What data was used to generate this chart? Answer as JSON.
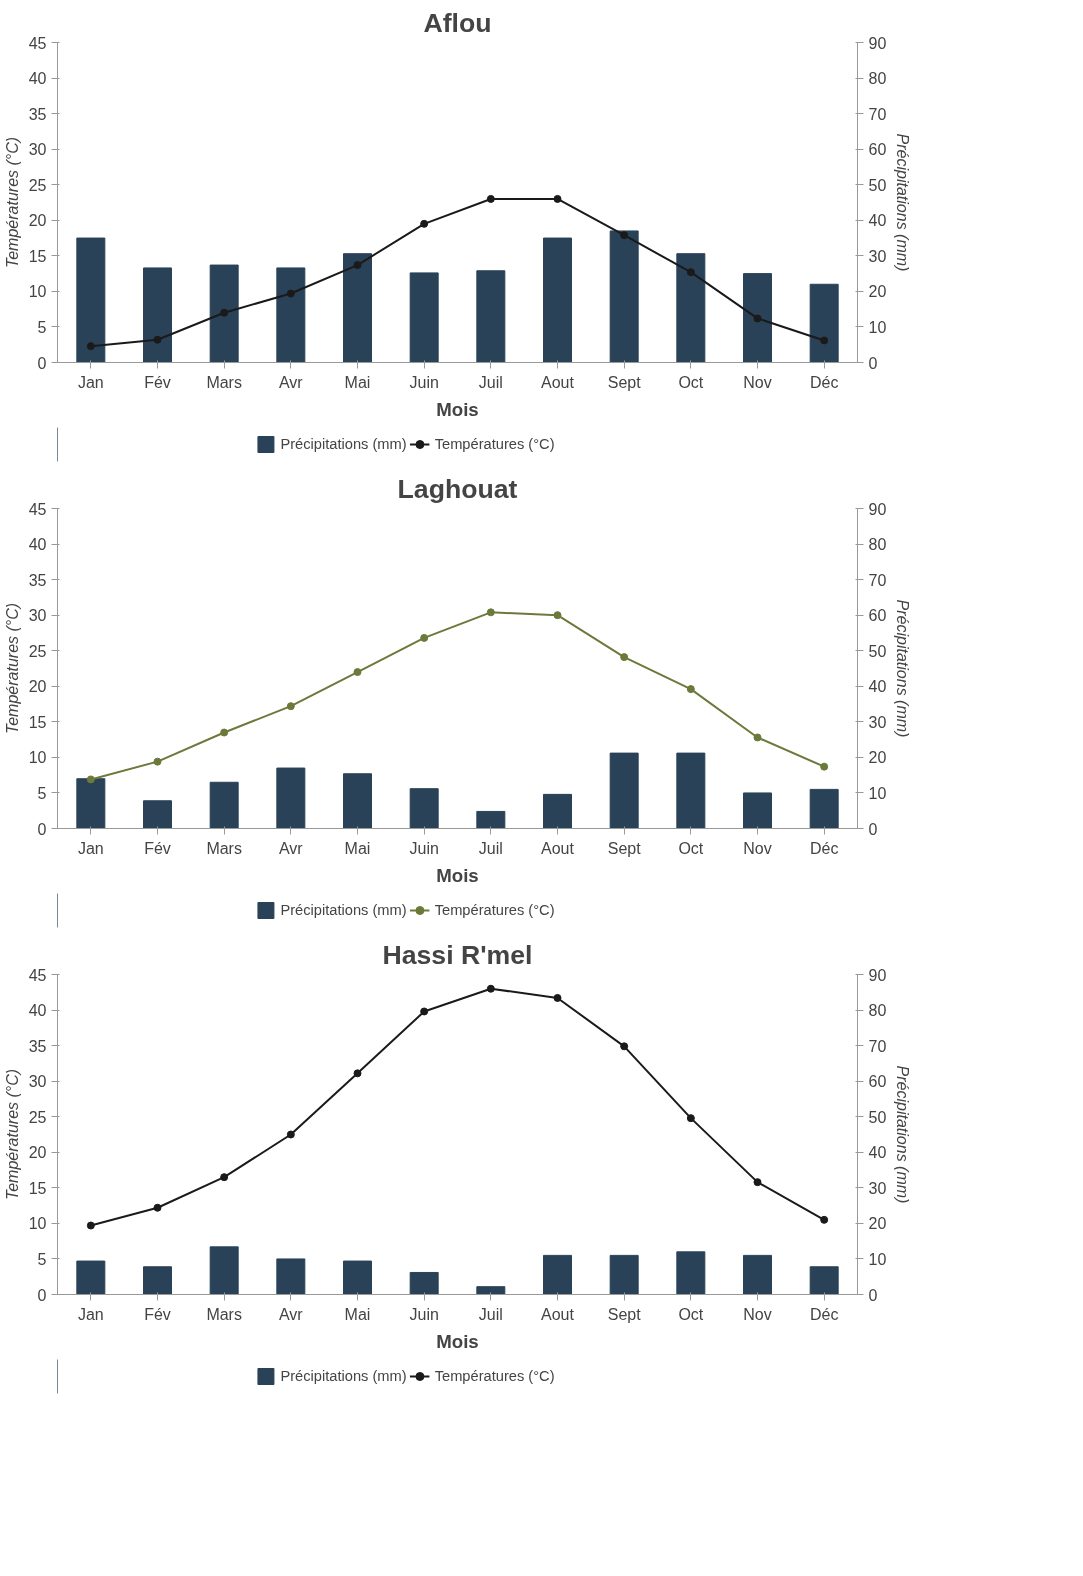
{
  "chart_data": [
    {
      "type": "bar",
      "title": "Aflou",
      "xlabel": "Mois",
      "ylabel": "Températures (°C)",
      "y2label": "Précipitations (mm)",
      "categories": [
        "Jan",
        "Fév",
        "Mars",
        "Avr",
        "Mai",
        "Juin",
        "Juil",
        "Aout",
        "Sept",
        "Oct",
        "Nov",
        "Déc"
      ],
      "ylim": [
        0,
        45
      ],
      "yticks": [
        0,
        5,
        10,
        15,
        20,
        25,
        30,
        35,
        40,
        45
      ],
      "y2lim": [
        0,
        90
      ],
      "y2ticks": [
        0,
        10,
        20,
        30,
        40,
        50,
        60,
        70,
        80,
        90
      ],
      "grid": false,
      "legend": "bottom",
      "series": [
        {
          "name": "Précipitations (mm)",
          "axis": "y2",
          "color": "#2a4258",
          "values": [
            35,
            26.6,
            27.4,
            26.6,
            30.6,
            25.2,
            25.8,
            35,
            37,
            30.6,
            25,
            22
          ]
        },
        {
          "name": "Températures (°C)",
          "type": "line",
          "marker": "circle",
          "color": "#1a1a1a",
          "values": [
            2.3,
            3.2,
            7,
            9.7,
            13.7,
            19.5,
            23,
            23,
            17.9,
            12.7,
            6.2,
            3.1
          ]
        }
      ]
    },
    {
      "type": "bar",
      "title": "Laghouat",
      "xlabel": "Mois",
      "ylabel": "Températures (°C)",
      "y2label": "Précipitations (mm)",
      "categories": [
        "Jan",
        "Fév",
        "Mars",
        "Avr",
        "Mai",
        "Juin",
        "Juil",
        "Aout",
        "Sept",
        "Oct",
        "Nov",
        "Déc"
      ],
      "ylim": [
        0,
        45
      ],
      "yticks": [
        0,
        5,
        10,
        15,
        20,
        25,
        30,
        35,
        40,
        45
      ],
      "y2lim": [
        0,
        90
      ],
      "y2ticks": [
        0,
        10,
        20,
        30,
        40,
        50,
        60,
        70,
        80,
        90
      ],
      "grid": false,
      "legend": "bottom",
      "series": [
        {
          "name": "Précipitations (mm)",
          "axis": "y2",
          "color": "#2a4258",
          "values": [
            14,
            7.8,
            13,
            17,
            15.4,
            11.2,
            4.8,
            9.6,
            21.2,
            21.2,
            10,
            11
          ]
        },
        {
          "name": "Températures (°C)",
          "type": "line",
          "marker": "circle",
          "color": "#6b7a3a",
          "values": [
            6.9,
            9.4,
            13.5,
            17.2,
            22,
            26.8,
            30.4,
            30,
            24.1,
            19.6,
            12.8,
            8.7
          ]
        }
      ]
    },
    {
      "type": "bar",
      "title": "Hassi R'mel",
      "xlabel": "Mois",
      "ylabel": "Températures (°C)",
      "y2label": "Précipitations (mm)",
      "categories": [
        "Jan",
        "Fév",
        "Mars",
        "Avr",
        "Mai",
        "Juin",
        "Juil",
        "Aout",
        "Sept",
        "Oct",
        "Nov",
        "Déc"
      ],
      "ylim": [
        0,
        45
      ],
      "yticks": [
        0,
        5,
        10,
        15,
        20,
        25,
        30,
        35,
        40,
        45
      ],
      "y2lim": [
        0,
        90
      ],
      "y2ticks": [
        0,
        10,
        20,
        30,
        40,
        50,
        60,
        70,
        80,
        90
      ],
      "grid": false,
      "legend": "bottom",
      "series": [
        {
          "name": "Précipitations (mm)",
          "axis": "y2",
          "color": "#2a4258",
          "values": [
            9.4,
            7.8,
            13.4,
            10,
            9.4,
            6.2,
            2.2,
            11,
            11,
            12,
            11,
            7.8
          ]
        },
        {
          "name": "Températures (°C)",
          "type": "line",
          "marker": "circle",
          "color": "#1a1a1a",
          "values": [
            9.7,
            12.2,
            16.5,
            22.5,
            31.1,
            39.8,
            43,
            41.7,
            34.9,
            24.8,
            15.8,
            10.5
          ]
        }
      ]
    }
  ]
}
